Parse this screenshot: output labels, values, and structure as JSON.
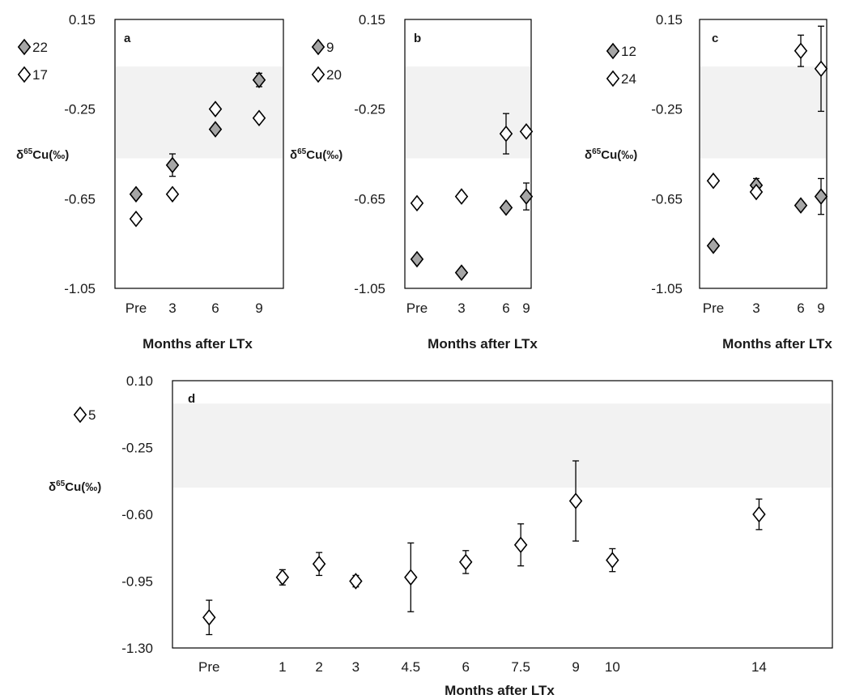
{
  "colors": {
    "reference_band": "#f2f2f2",
    "filled_marker": "#a6a6a6",
    "open_marker": "#ffffff",
    "marker_stroke": "#000000",
    "frame": "#000000",
    "text": "#1a1a1a"
  },
  "chart_data": [
    {
      "panel_label": "a",
      "type": "scatter",
      "xlabel": "Months after LTx",
      "ylabel": "δ65Cu(‰)",
      "ylim": [
        -1.05,
        0.15
      ],
      "yticks": [
        "0.15",
        "-0.25",
        "-0.65",
        "-1.05"
      ],
      "ytick_values": [
        0.15,
        -0.25,
        -0.65,
        -1.05
      ],
      "categories": [
        "Pre",
        "3",
        "6",
        "9"
      ],
      "reference_band": [
        -0.47,
        -0.06
      ],
      "grid": false,
      "legend_position": "left",
      "series": [
        {
          "name": "22",
          "marker": "filled-diamond",
          "values": [
            -0.63,
            -0.5,
            -0.34,
            -0.12
          ],
          "errors": [
            0.01,
            0.05,
            0.01,
            0.03
          ]
        },
        {
          "name": "17",
          "marker": "open-diamond",
          "values": [
            -0.74,
            -0.63,
            -0.25,
            -0.29
          ],
          "errors": [
            0.01,
            0.01,
            0.01,
            0.01
          ]
        }
      ]
    },
    {
      "panel_label": "b",
      "type": "scatter",
      "xlabel": "Months after LTx",
      "ylabel": "δ65Cu(‰)",
      "ylim": [
        -1.05,
        0.15
      ],
      "yticks": [
        "0.15",
        "-0.25",
        "-0.65",
        "-1.05"
      ],
      "ytick_values": [
        0.15,
        -0.25,
        -0.65,
        -1.05
      ],
      "categories": [
        "Pre",
        "3",
        "6",
        "9"
      ],
      "reference_band": [
        -0.47,
        -0.06
      ],
      "grid": false,
      "legend_position": "left",
      "series": [
        {
          "name": "9",
          "marker": "filled-diamond",
          "values": [
            -0.92,
            -0.98,
            -0.69,
            -0.64
          ],
          "errors": [
            0.01,
            0.01,
            0.01,
            0.06
          ]
        },
        {
          "name": "20",
          "marker": "open-diamond",
          "values": [
            -0.67,
            -0.64,
            -0.36,
            -0.35
          ],
          "errors": [
            0.01,
            0.01,
            0.09,
            0.01
          ]
        }
      ]
    },
    {
      "panel_label": "c",
      "type": "scatter",
      "xlabel": "Months after LTx",
      "ylabel": "δ65Cu(‰)",
      "ylim": [
        -1.05,
        0.15
      ],
      "yticks": [
        "0.15",
        "-0.25",
        "-0.65",
        "-1.05"
      ],
      "ytick_values": [
        0.15,
        -0.25,
        -0.65,
        -1.05
      ],
      "categories": [
        "Pre",
        "3",
        "6",
        "9"
      ],
      "reference_band": [
        -0.47,
        -0.06
      ],
      "grid": false,
      "legend_position": "left",
      "series": [
        {
          "name": "12",
          "marker": "filled-diamond",
          "values": [
            -0.86,
            -0.59,
            -0.68,
            -0.64
          ],
          "errors": [
            0.01,
            0.03,
            0.01,
            0.08
          ]
        },
        {
          "name": "24",
          "marker": "open-diamond",
          "values": [
            -0.57,
            -0.62,
            0.01,
            -0.07
          ],
          "errors": [
            0.01,
            0.01,
            0.07,
            0.19
          ]
        }
      ]
    },
    {
      "panel_label": "d",
      "type": "scatter",
      "xlabel": "Months after LTx",
      "ylabel": "δ65Cu(‰)",
      "ylim": [
        -1.3,
        0.1
      ],
      "yticks": [
        "0.10",
        "-0.25",
        "-0.60",
        "-0.95",
        "-1.30"
      ],
      "ytick_values": [
        0.1,
        -0.25,
        -0.6,
        -0.95,
        -1.3
      ],
      "x_categories": [
        "Pre",
        "1",
        "2",
        "3",
        "4.5",
        "6",
        "7.5",
        "9",
        "10",
        "14"
      ],
      "x_positions": [
        -1,
        1,
        2,
        3,
        4.5,
        6,
        7.5,
        9,
        10,
        14
      ],
      "xlim": [
        -2,
        16
      ],
      "reference_band": [
        -0.46,
        -0.02
      ],
      "grid": false,
      "legend_position": "left",
      "series": [
        {
          "name": "5",
          "marker": "open-diamond",
          "x": [
            -1,
            1,
            2,
            3,
            4.5,
            6,
            7.5,
            9,
            10,
            14
          ],
          "values": [
            -1.14,
            -0.93,
            -0.86,
            -0.95,
            -0.93,
            -0.85,
            -0.76,
            -0.53,
            -0.84,
            -0.6
          ],
          "errors": [
            0.09,
            0.04,
            0.06,
            0.03,
            0.18,
            0.06,
            0.11,
            0.21,
            0.06,
            0.08
          ]
        }
      ]
    }
  ]
}
